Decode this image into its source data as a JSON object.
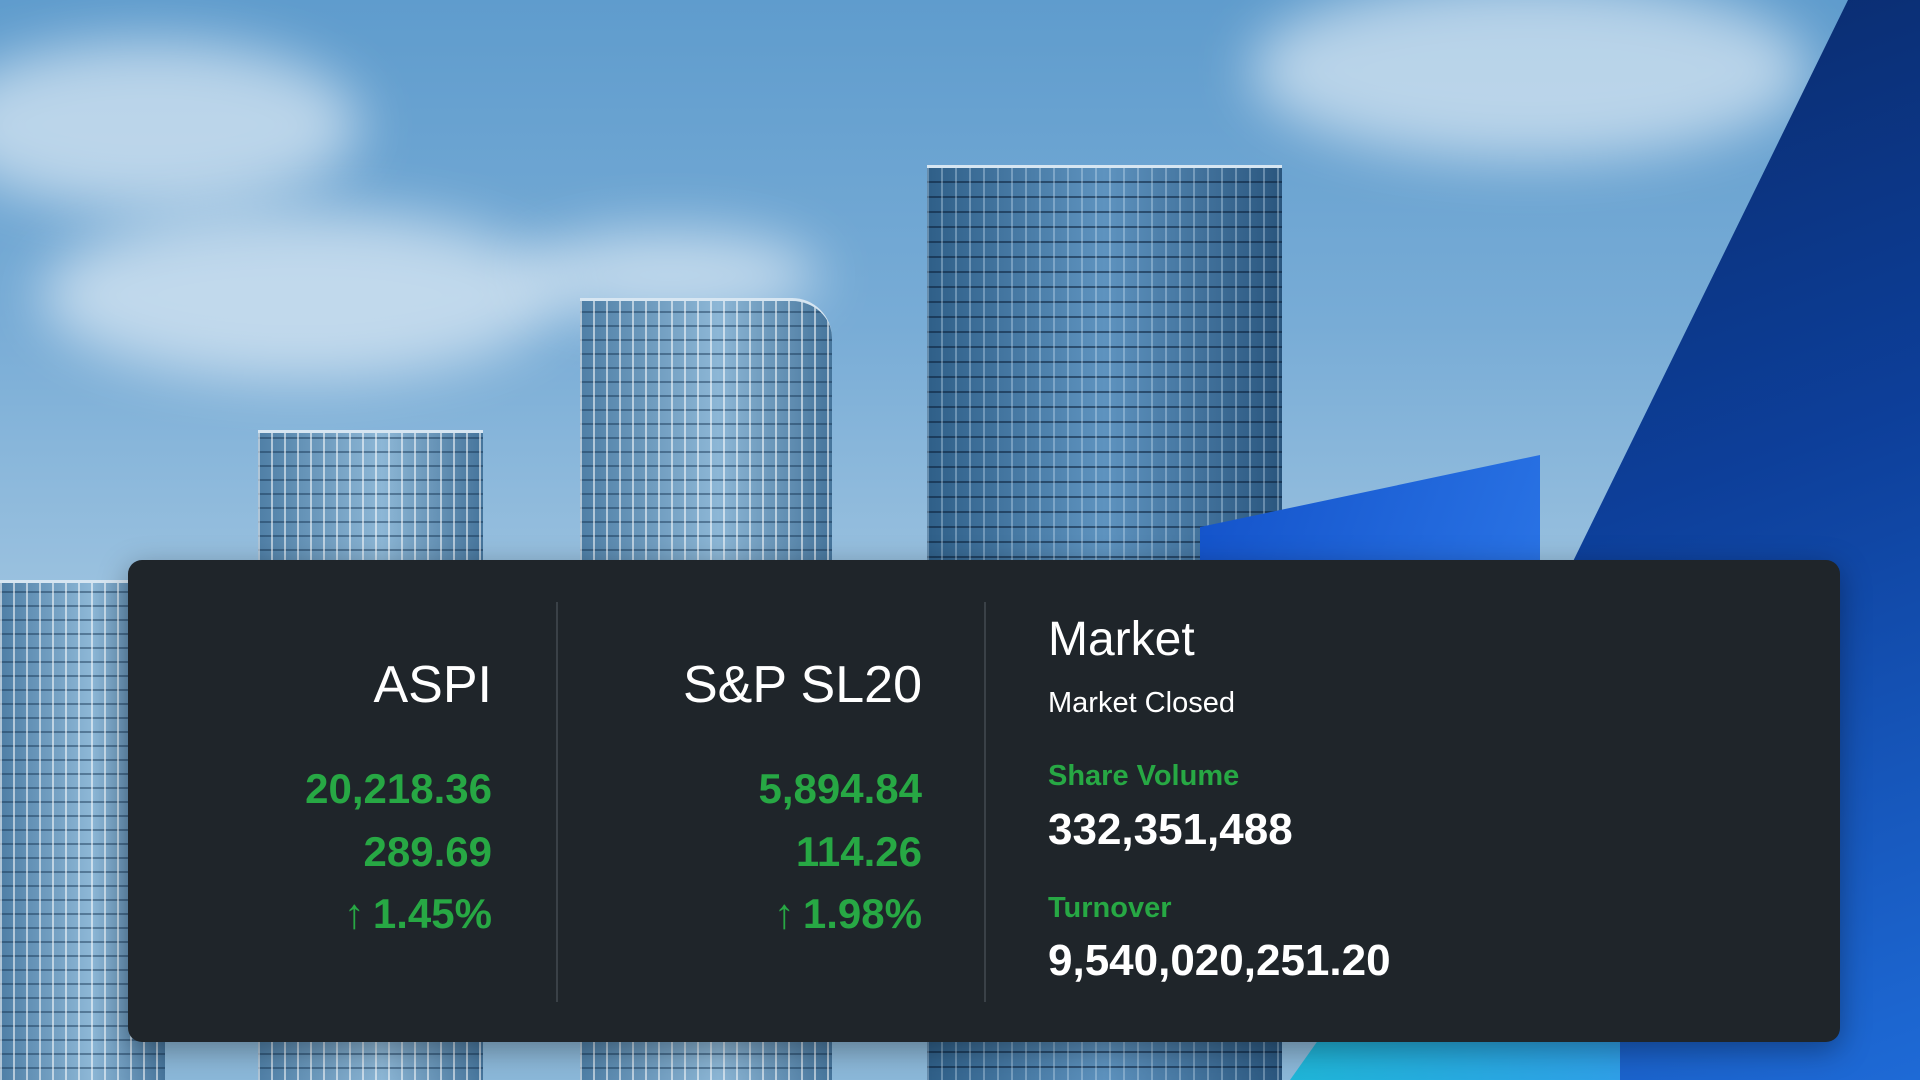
{
  "indices": [
    {
      "name": "ASPI",
      "value": "20,218.36",
      "change": "289.69",
      "percent": "1.45%"
    },
    {
      "name": "S&P SL20",
      "value": "5,894.84",
      "change": "114.26",
      "percent": "1.98%"
    }
  ],
  "market": {
    "title": "Market",
    "status": "Market Closed",
    "share_volume_label": "Share Volume",
    "share_volume": "332,351,488",
    "turnover_label": "Turnover",
    "turnover": "9,540,020,251.20"
  },
  "icons": {
    "up_arrow": "↑"
  },
  "colors": {
    "panel_bg": "#1f252a",
    "positive": "#27a844",
    "text": "#ffffff"
  }
}
